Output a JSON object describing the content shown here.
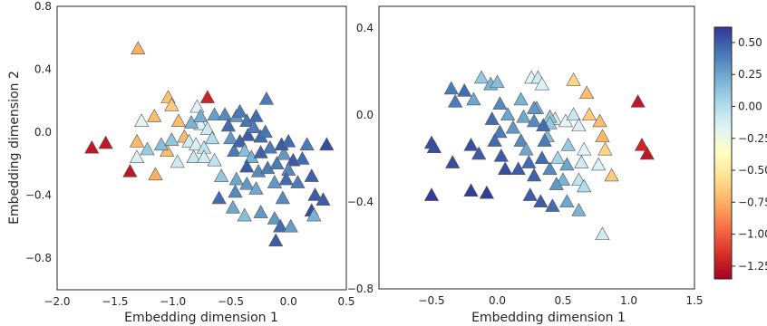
{
  "chart_data": [
    {
      "type": "scatter",
      "marker": "triangle",
      "xlabel": "Embedding dimension 1",
      "ylabel": "Embedding dimension 2",
      "xlim": [
        -2.0,
        0.5
      ],
      "ylim": [
        -1.0,
        0.8
      ],
      "xticks": [
        "−2.0",
        "−1.5",
        "−1.0",
        "−0.5",
        "0.0",
        "0.5"
      ],
      "xtick_values": [
        -2.0,
        -1.5,
        -1.0,
        -0.5,
        0.0,
        0.5
      ],
      "yticks": [
        "0.8",
        "0.4",
        "0.0",
        "−0.4",
        "−0.8"
      ],
      "ytick_values": [
        0.8,
        0.4,
        0.0,
        -0.4,
        -0.8
      ],
      "grid": false,
      "points": [
        {
          "x": -1.7,
          "y": -0.1,
          "c": -1.25
        },
        {
          "x": -1.58,
          "y": -0.07,
          "c": -1.25
        },
        {
          "x": -1.37,
          "y": -0.25,
          "c": -1.25
        },
        {
          "x": -0.7,
          "y": 0.22,
          "c": -1.2
        },
        {
          "x": -1.3,
          "y": 0.53,
          "c": -0.75
        },
        {
          "x": -1.31,
          "y": -0.06,
          "c": -0.72
        },
        {
          "x": -1.16,
          "y": 0.1,
          "c": -0.7
        },
        {
          "x": -1.04,
          "y": 0.22,
          "c": -0.68
        },
        {
          "x": -1.01,
          "y": 0.17,
          "c": -0.65
        },
        {
          "x": -0.95,
          "y": 0.07,
          "c": -0.7
        },
        {
          "x": -0.9,
          "y": -0.03,
          "c": -0.72
        },
        {
          "x": -1.05,
          "y": -0.12,
          "c": -0.7
        },
        {
          "x": -1.15,
          "y": -0.27,
          "c": -0.75
        },
        {
          "x": -1.27,
          "y": 0.07,
          "c": -0.2
        },
        {
          "x": -1.31,
          "y": -0.16,
          "c": -0.15
        },
        {
          "x": -1.22,
          "y": -0.11,
          "c": 0.1
        },
        {
          "x": -1.1,
          "y": -0.08,
          "c": 0.15
        },
        {
          "x": -1.01,
          "y": -0.05,
          "c": 0.12
        },
        {
          "x": -0.96,
          "y": -0.19,
          "c": -0.1
        },
        {
          "x": -0.86,
          "y": -0.06,
          "c": -0.12
        },
        {
          "x": -0.79,
          "y": 0.16,
          "c": -0.18
        },
        {
          "x": -0.76,
          "y": 0.05,
          "c": -0.15
        },
        {
          "x": -0.7,
          "y": 0.02,
          "c": -0.1
        },
        {
          "x": -0.8,
          "y": -0.08,
          "c": -0.14
        },
        {
          "x": -0.73,
          "y": -0.1,
          "c": -0.05
        },
        {
          "x": -0.82,
          "y": -0.16,
          "c": -0.08
        },
        {
          "x": -0.73,
          "y": -0.16,
          "c": -0.12
        },
        {
          "x": -0.64,
          "y": -0.18,
          "c": -0.05
        },
        {
          "x": -0.66,
          "y": -0.04,
          "c": 0.0
        },
        {
          "x": -0.84,
          "y": 0.06,
          "c": 0.2
        },
        {
          "x": -0.76,
          "y": 0.1,
          "c": 0.22
        },
        {
          "x": -0.64,
          "y": 0.11,
          "c": 0.28
        },
        {
          "x": -0.55,
          "y": 0.11,
          "c": 0.35
        },
        {
          "x": -0.52,
          "y": 0.04,
          "c": 0.45
        },
        {
          "x": -0.45,
          "y": 0.1,
          "c": 0.3
        },
        {
          "x": -0.42,
          "y": 0.13,
          "c": 0.4
        },
        {
          "x": -0.36,
          "y": 0.07,
          "c": 0.42
        },
        {
          "x": -0.28,
          "y": 0.1,
          "c": 0.45
        },
        {
          "x": -0.19,
          "y": 0.21,
          "c": 0.4
        },
        {
          "x": -0.5,
          "y": -0.04,
          "c": 0.3
        },
        {
          "x": -0.47,
          "y": -0.12,
          "c": 0.4
        },
        {
          "x": -0.42,
          "y": -0.06,
          "c": 0.48
        },
        {
          "x": -0.35,
          "y": -0.02,
          "c": 0.5
        },
        {
          "x": -0.3,
          "y": 0.03,
          "c": 0.4
        },
        {
          "x": -0.24,
          "y": -0.03,
          "c": 0.45
        },
        {
          "x": -0.2,
          "y": 0.0,
          "c": 0.42
        },
        {
          "x": -0.38,
          "y": -0.12,
          "c": 0.15
        },
        {
          "x": -0.32,
          "y": -0.16,
          "c": 0.2
        },
        {
          "x": -0.24,
          "y": -0.13,
          "c": 0.48
        },
        {
          "x": -0.16,
          "y": -0.1,
          "c": 0.4
        },
        {
          "x": -0.36,
          "y": -0.22,
          "c": 0.5
        },
        {
          "x": -0.26,
          "y": -0.25,
          "c": 0.35
        },
        {
          "x": -0.18,
          "y": -0.23,
          "c": 0.4
        },
        {
          "x": -0.1,
          "y": -0.2,
          "c": 0.4
        },
        {
          "x": -0.04,
          "y": -0.14,
          "c": 0.3
        },
        {
          "x": -0.06,
          "y": -0.08,
          "c": 0.5
        },
        {
          "x": 0.0,
          "y": -0.06,
          "c": 0.45
        },
        {
          "x": 0.04,
          "y": -0.18,
          "c": 0.5
        },
        {
          "x": 0.0,
          "y": -0.24,
          "c": 0.35
        },
        {
          "x": -0.02,
          "y": -0.3,
          "c": 0.45
        },
        {
          "x": 0.08,
          "y": -0.32,
          "c": 0.4
        },
        {
          "x": -0.45,
          "y": -0.3,
          "c": 0.25
        },
        {
          "x": -0.58,
          "y": -0.28,
          "c": 0.1
        },
        {
          "x": -0.36,
          "y": -0.33,
          "c": 0.3
        },
        {
          "x": -0.46,
          "y": -0.38,
          "c": 0.35
        },
        {
          "x": -0.28,
          "y": -0.36,
          "c": 0.25
        },
        {
          "x": -0.12,
          "y": -0.32,
          "c": 0.3
        },
        {
          "x": -0.05,
          "y": -0.42,
          "c": 0.35
        },
        {
          "x": -0.6,
          "y": -0.42,
          "c": 0.45
        },
        {
          "x": -0.48,
          "y": -0.48,
          "c": 0.25
        },
        {
          "x": -0.38,
          "y": -0.53,
          "c": 0.15
        },
        {
          "x": -0.24,
          "y": -0.51,
          "c": 0.3
        },
        {
          "x": -0.12,
          "y": -0.55,
          "c": 0.3
        },
        {
          "x": -0.07,
          "y": -0.6,
          "c": 0.45
        },
        {
          "x": 0.02,
          "y": -0.6,
          "c": 0.28
        },
        {
          "x": -0.11,
          "y": -0.69,
          "c": 0.5
        },
        {
          "x": 0.16,
          "y": -0.08,
          "c": 0.4
        },
        {
          "x": 0.12,
          "y": -0.17,
          "c": 0.45
        },
        {
          "x": 0.2,
          "y": -0.28,
          "c": 0.48
        },
        {
          "x": 0.23,
          "y": -0.4,
          "c": 0.5
        },
        {
          "x": 0.33,
          "y": -0.08,
          "c": 0.55
        },
        {
          "x": 0.3,
          "y": -0.43,
          "c": 0.5
        },
        {
          "x": 0.2,
          "y": -0.5,
          "c": 0.55
        },
        {
          "x": 0.22,
          "y": -0.53,
          "c": 0.2
        }
      ]
    },
    {
      "type": "scatter",
      "marker": "triangle",
      "xlabel": "Embedding dimension 1",
      "ylabel": "",
      "xlim": [
        -0.9,
        1.5
      ],
      "ylim": [
        -0.8,
        0.5
      ],
      "xticks": [
        "−0.5",
        "0.0",
        "0.5",
        "1.0",
        "1.5"
      ],
      "xtick_values": [
        -0.5,
        0.0,
        0.5,
        1.0,
        1.5
      ],
      "yticks": [
        "0.4",
        "0.0",
        "−0.4",
        "−0.8"
      ],
      "ytick_values": [
        0.4,
        0.0,
        -0.4,
        -0.8
      ],
      "grid": false,
      "points": [
        {
          "x": 1.07,
          "y": 0.06,
          "c": -1.25
        },
        {
          "x": 1.1,
          "y": -0.14,
          "c": -1.2
        },
        {
          "x": 1.14,
          "y": -0.18,
          "c": -1.25
        },
        {
          "x": 0.58,
          "y": 0.16,
          "c": -0.6
        },
        {
          "x": 0.68,
          "y": 0.1,
          "c": -0.7
        },
        {
          "x": 0.7,
          "y": 0.0,
          "c": -0.65
        },
        {
          "x": 0.78,
          "y": -0.03,
          "c": -0.7
        },
        {
          "x": 0.8,
          "y": -0.1,
          "c": -0.72
        },
        {
          "x": 0.82,
          "y": -0.16,
          "c": -0.6
        },
        {
          "x": 0.87,
          "y": -0.28,
          "c": -0.65
        },
        {
          "x": 0.26,
          "y": 0.17,
          "c": -0.2
        },
        {
          "x": 0.31,
          "y": 0.17,
          "c": -0.1
        },
        {
          "x": 0.34,
          "y": 0.14,
          "c": -0.15
        },
        {
          "x": 0.44,
          "y": -0.02,
          "c": -0.12
        },
        {
          "x": 0.52,
          "y": -0.03,
          "c": -0.2
        },
        {
          "x": 0.58,
          "y": 0.0,
          "c": -0.08
        },
        {
          "x": 0.62,
          "y": -0.05,
          "c": -0.15
        },
        {
          "x": 0.66,
          "y": -0.16,
          "c": -0.18
        },
        {
          "x": 0.64,
          "y": -0.22,
          "c": -0.1
        },
        {
          "x": 0.62,
          "y": -0.3,
          "c": -0.05
        },
        {
          "x": 0.66,
          "y": -0.33,
          "c": 0.0
        },
        {
          "x": 0.77,
          "y": -0.23,
          "c": -0.15
        },
        {
          "x": 0.8,
          "y": -0.55,
          "c": -0.1
        },
        {
          "x": 0.46,
          "y": -0.2,
          "c": 0.05
        },
        {
          "x": 0.54,
          "y": -0.14,
          "c": 0.1
        },
        {
          "x": 0.38,
          "y": -0.1,
          "c": 0.15
        },
        {
          "x": 0.4,
          "y": -0.01,
          "c": 0.12
        },
        {
          "x": 0.3,
          "y": 0.03,
          "c": 0.2
        },
        {
          "x": 0.4,
          "y": -0.04,
          "c": 0.1
        },
        {
          "x": -0.12,
          "y": 0.17,
          "c": 0.1
        },
        {
          "x": -0.05,
          "y": 0.14,
          "c": 0.2
        },
        {
          "x": 0.0,
          "y": 0.15,
          "c": 0.15
        },
        {
          "x": -0.35,
          "y": 0.12,
          "c": 0.4
        },
        {
          "x": -0.25,
          "y": 0.11,
          "c": 0.45
        },
        {
          "x": -0.32,
          "y": 0.06,
          "c": 0.4
        },
        {
          "x": -0.18,
          "y": 0.07,
          "c": 0.25
        },
        {
          "x": 0.02,
          "y": 0.05,
          "c": 0.35
        },
        {
          "x": 0.08,
          "y": 0.0,
          "c": 0.25
        },
        {
          "x": 0.18,
          "y": 0.07,
          "c": 0.2
        },
        {
          "x": 0.28,
          "y": 0.03,
          "c": 0.3
        },
        {
          "x": 0.2,
          "y": -0.01,
          "c": 0.25
        },
        {
          "x": 0.28,
          "y": -0.03,
          "c": 0.35
        },
        {
          "x": -0.04,
          "y": -0.02,
          "c": 0.45
        },
        {
          "x": 0.02,
          "y": -0.08,
          "c": 0.4
        },
        {
          "x": 0.12,
          "y": -0.06,
          "c": 0.3
        },
        {
          "x": 0.18,
          "y": -0.12,
          "c": 0.35
        },
        {
          "x": 0.22,
          "y": -0.16,
          "c": 0.25
        },
        {
          "x": 0.35,
          "y": -0.05,
          "c": 0.45
        },
        {
          "x": 0.36,
          "y": -0.12,
          "c": 0.4
        },
        {
          "x": 0.34,
          "y": -0.2,
          "c": 0.45
        },
        {
          "x": -0.5,
          "y": -0.13,
          "c": 0.55
        },
        {
          "x": -0.48,
          "y": -0.15,
          "c": 0.55
        },
        {
          "x": -0.2,
          "y": -0.14,
          "c": 0.55
        },
        {
          "x": -0.14,
          "y": -0.18,
          "c": 0.5
        },
        {
          "x": -0.02,
          "y": -0.12,
          "c": 0.45
        },
        {
          "x": 0.03,
          "y": -0.19,
          "c": 0.5
        },
        {
          "x": 0.06,
          "y": -0.25,
          "c": 0.55
        },
        {
          "x": 0.16,
          "y": -0.25,
          "c": 0.5
        },
        {
          "x": 0.24,
          "y": -0.22,
          "c": 0.45
        },
        {
          "x": 0.28,
          "y": -0.28,
          "c": 0.48
        },
        {
          "x": 0.4,
          "y": -0.25,
          "c": 0.35
        },
        {
          "x": 0.53,
          "y": -0.23,
          "c": 0.25
        },
        {
          "x": 0.5,
          "y": -0.3,
          "c": 0.2
        },
        {
          "x": 0.25,
          "y": -0.37,
          "c": 0.5
        },
        {
          "x": 0.33,
          "y": -0.4,
          "c": 0.5
        },
        {
          "x": 0.42,
          "y": -0.42,
          "c": 0.45
        },
        {
          "x": 0.53,
          "y": -0.4,
          "c": 0.25
        },
        {
          "x": -0.5,
          "y": -0.37,
          "c": 0.6
        },
        {
          "x": -0.2,
          "y": -0.35,
          "c": 0.6
        },
        {
          "x": -0.08,
          "y": -0.36,
          "c": 0.6
        },
        {
          "x": 0.62,
          "y": -0.44,
          "c": 0.2
        },
        {
          "x": -0.34,
          "y": -0.22,
          "c": 0.55
        },
        {
          "x": 0.45,
          "y": -0.32,
          "c": 0.3
        }
      ]
    }
  ],
  "colorbar": {
    "ticks": [
      "0.50",
      "0.25",
      "0.00",
      "−0.25",
      "−0.50",
      "−0.75",
      "−1.00",
      "−1.25"
    ],
    "tick_values": [
      0.5,
      0.25,
      0.0,
      -0.25,
      -0.5,
      -0.75,
      -1.0,
      -1.25
    ],
    "range": [
      -1.35,
      0.62
    ],
    "colormap": "RdYlBu",
    "stops": [
      "#a50026",
      "#d73027",
      "#f46d43",
      "#fdae61",
      "#fee090",
      "#ffffbf",
      "#e0f3f8",
      "#abd9e9",
      "#74add1",
      "#4575b4",
      "#313695"
    ]
  }
}
